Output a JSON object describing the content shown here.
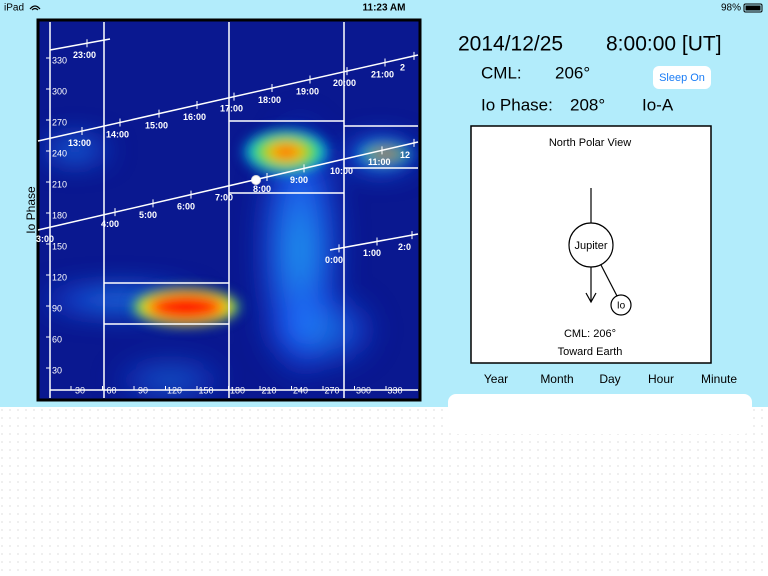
{
  "status_bar": {
    "device": "iPad",
    "time": "11:23 AM",
    "battery": "98%"
  },
  "plot": {
    "y_axis_label": "Io Phase",
    "y_ticks": [
      330,
      300,
      270,
      240,
      210,
      180,
      150,
      120,
      90,
      60,
      30
    ],
    "x_ticks": [
      30,
      60,
      90,
      120,
      150,
      180,
      210,
      240,
      270,
      300,
      330
    ],
    "time_lines": [
      {
        "labels": [
          "13:00",
          "14:00",
          "15:00",
          "16:00",
          "17:00",
          "18:00",
          "19:00",
          "20:00",
          "21:00",
          "2"
        ]
      },
      {
        "labels": [
          "3:00",
          "4:00",
          "5:00",
          "6:00",
          "7:00",
          "8:00",
          "9:00",
          "10:00",
          "11:00",
          "12"
        ]
      },
      {
        "labels": [
          "23:00"
        ]
      },
      {
        "labels": [
          "0:00",
          "1:00",
          "2:0"
        ]
      }
    ]
  },
  "info": {
    "date": "2014/12/25",
    "time": "8:00:00 [UT]",
    "cml_label": "CML:",
    "cml_value": "206°",
    "sleep_button": "Sleep On",
    "io_phase_label": "Io Phase:",
    "io_phase_value": "208°",
    "io_source": "Io-A"
  },
  "polar_view": {
    "title": "North Polar View",
    "planet": "Jupiter",
    "moon": "Io",
    "cml": "CML: 206°",
    "direction": "Toward Earth"
  },
  "date_controls": [
    "Year",
    "Month",
    "Day",
    "Hour",
    "Minute"
  ]
}
